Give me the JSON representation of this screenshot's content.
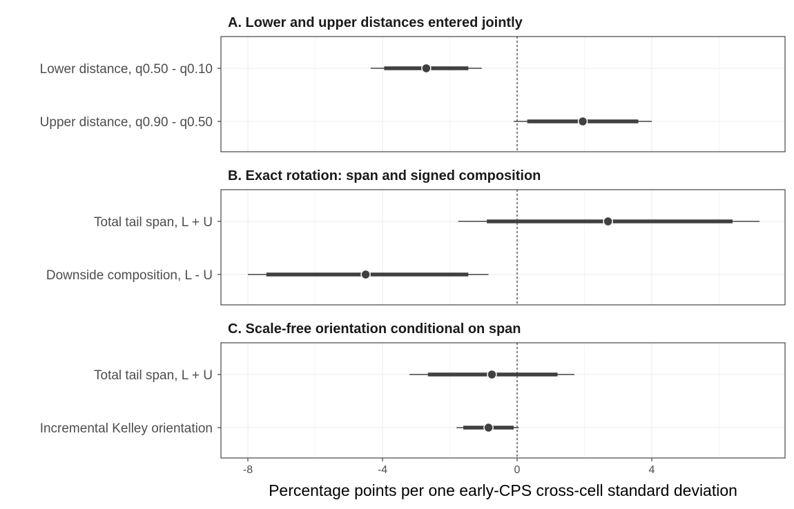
{
  "chart_data": {
    "type": "forest",
    "xlabel": "Percentage points per one early-CPS cross-cell standard deviation",
    "xlim": [
      -8.8,
      8.0
    ],
    "xticks": [
      -8,
      -4,
      0,
      4
    ],
    "xtick_labels": [
      "-8",
      "-4",
      "0",
      "4"
    ],
    "reference_line": 0,
    "grid": true,
    "panels": [
      {
        "title": "A. Lower and upper distances entered jointly",
        "rows": [
          {
            "label": "Lower distance, q0.50 - q0.10",
            "estimate": -2.7,
            "ci_inner": [
              -3.95,
              -1.45
            ],
            "ci_outer": [
              -4.35,
              -1.05
            ]
          },
          {
            "label": "Upper distance, q0.90 - q0.50",
            "estimate": 1.95,
            "ci_inner": [
              0.3,
              3.6
            ],
            "ci_outer": [
              -0.1,
              4.0
            ]
          }
        ]
      },
      {
        "title": "B. Exact rotation: span and signed composition",
        "rows": [
          {
            "label": "Total tail span, L + U",
            "estimate": 2.7,
            "ci_inner": [
              -0.9,
              6.4
            ],
            "ci_outer": [
              -1.75,
              7.2
            ]
          },
          {
            "label": "Downside composition, L - U",
            "estimate": -4.5,
            "ci_inner": [
              -7.45,
              -1.45
            ],
            "ci_outer": [
              -8.0,
              -0.85
            ]
          }
        ]
      },
      {
        "title": "C. Scale-free orientation conditional on span",
        "rows": [
          {
            "label": "Total tail span, L + U",
            "estimate": -0.75,
            "ci_inner": [
              -2.65,
              1.2
            ],
            "ci_outer": [
              -3.2,
              1.7
            ]
          },
          {
            "label": "Incremental Kelley orientation",
            "estimate": -0.85,
            "ci_inner": [
              -1.6,
              -0.1
            ],
            "ci_outer": [
              -1.8,
              0.05
            ]
          }
        ]
      }
    ]
  }
}
